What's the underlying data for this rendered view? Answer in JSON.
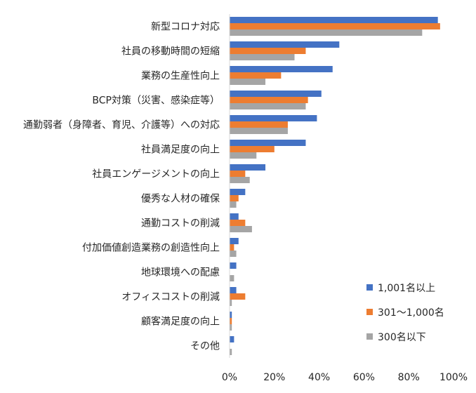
{
  "chart_data": {
    "type": "bar",
    "orientation": "horizontal",
    "categories": [
      "新型コロナ対応",
      "社員の移動時間の短縮",
      "業務の生産性向上",
      "BCP対策（災害、感染症等）",
      "通勤弱者（身障者、育児、介護等）への対応",
      "社員満足度の向上",
      "社員エンゲージメントの向上",
      "優秀な人材の確保",
      "通勤コストの削減",
      "付加価値創造業務の創造性向上",
      "地球環境への配慮",
      "オフィスコストの削減",
      "顧客満足度の向上",
      "その他"
    ],
    "series": [
      {
        "name": "1,001名以上",
        "color": "#4472C4",
        "values": [
          93,
          49,
          46,
          41,
          39,
          34,
          16,
          7,
          4,
          4,
          3,
          3,
          1,
          2
        ]
      },
      {
        "name": "301〜1,000名",
        "color": "#ED7D31",
        "values": [
          94,
          34,
          23,
          35,
          26,
          20,
          7,
          4,
          7,
          2,
          0,
          7,
          1,
          0
        ]
      },
      {
        "name": "300名以下",
        "color": "#A5A5A5",
        "values": [
          86,
          29,
          16,
          34,
          26,
          12,
          9,
          3,
          10,
          3,
          2,
          1,
          1,
          1
        ]
      }
    ],
    "x_ticks": [
      "0%",
      "20%",
      "40%",
      "60%",
      "80%",
      "100%"
    ],
    "xlim": [
      0,
      100
    ],
    "legend_position": "bottom-right",
    "grid": false
  }
}
